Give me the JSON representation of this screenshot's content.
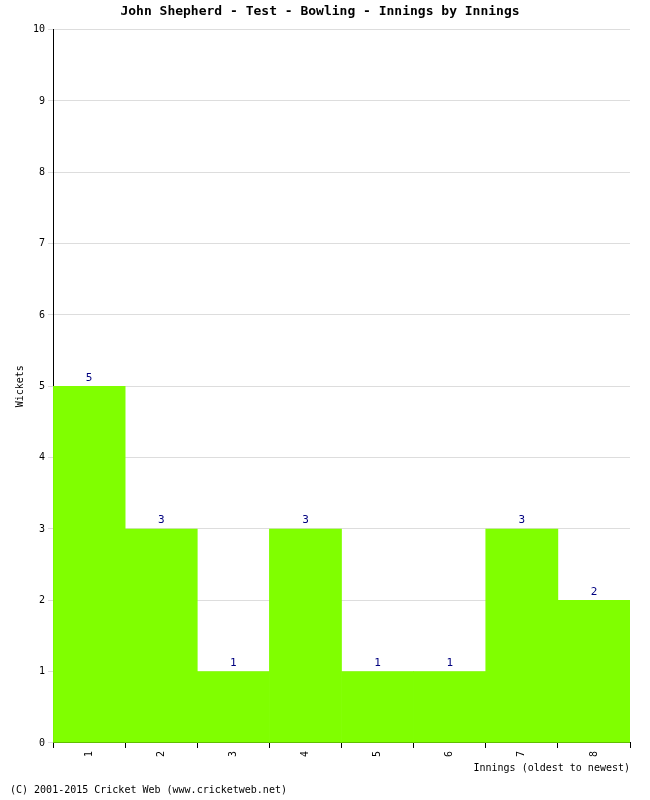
{
  "chart_data": {
    "type": "bar",
    "title": "John Shepherd - Test - Bowling - Innings by Innings",
    "footer": "(C) 2001-2015 Cricket Web (www.cricketweb.net)",
    "x_label": "Innings (oldest to newest)",
    "y_label": "Wickets",
    "categories": [
      "1",
      "2",
      "3",
      "4",
      "5",
      "6",
      "7",
      "8"
    ],
    "values": [
      5,
      3,
      1,
      3,
      1,
      1,
      3,
      2
    ],
    "color": "#80ff00",
    "ylim": [
      0,
      10
    ],
    "yticks": [
      0,
      1,
      2,
      3,
      4,
      5,
      6,
      7,
      8,
      9,
      10
    ],
    "grid": true,
    "data_labels": true
  }
}
